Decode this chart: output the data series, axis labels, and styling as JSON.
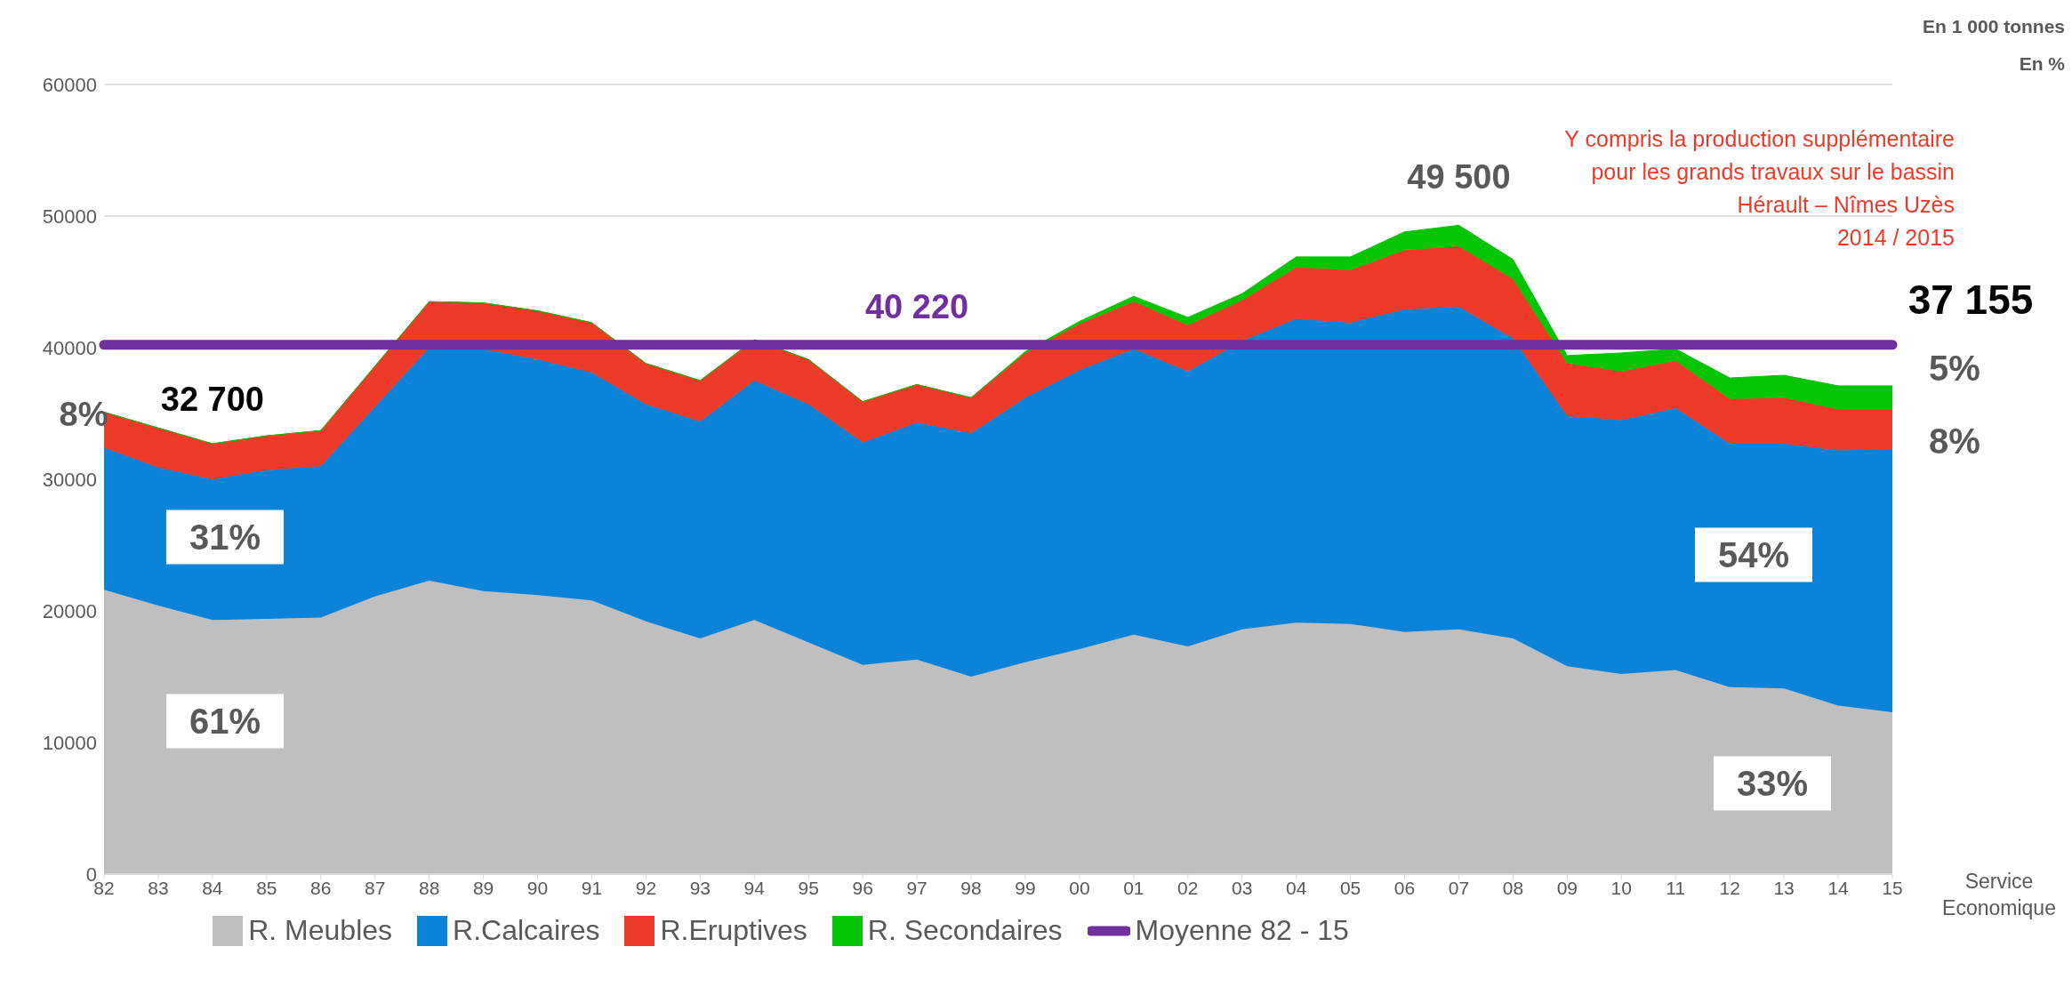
{
  "chart_data": {
    "type": "area",
    "stacked": true,
    "categories": [
      "82",
      "83",
      "84",
      "85",
      "86",
      "87",
      "88",
      "89",
      "90",
      "91",
      "92",
      "93",
      "94",
      "95",
      "96",
      "97",
      "98",
      "99",
      "00",
      "01",
      "02",
      "03",
      "04",
      "05",
      "06",
      "07",
      "08",
      "09",
      "10",
      "11",
      "12",
      "13",
      "14",
      "15"
    ],
    "series": [
      {
        "name": "R. Meubles",
        "color": "#bfbfbf",
        "values": [
          21600,
          20400,
          19300,
          19400,
          19500,
          21100,
          22300,
          21500,
          21200,
          20800,
          19200,
          17900,
          19300,
          17600,
          15900,
          16300,
          15000,
          16100,
          17100,
          18200,
          17300,
          18600,
          19100,
          19000,
          18400,
          18600,
          17900,
          15800,
          15200,
          15500,
          14200,
          14100,
          12800,
          12300
        ]
      },
      {
        "name": "R.Calcaires",
        "color": "#0a83d8",
        "values": [
          10800,
          10500,
          10700,
          11300,
          11500,
          14400,
          17700,
          18400,
          17900,
          17300,
          16500,
          16500,
          18200,
          18100,
          16900,
          18000,
          18500,
          20100,
          21200,
          21700,
          20900,
          21900,
          23100,
          22900,
          24500,
          24500,
          22800,
          19000,
          19300,
          19900,
          18500,
          18600,
          19400,
          20000
        ]
      },
      {
        "name": "R.Eruptives",
        "color": "#ee3a28",
        "values": [
          2700,
          3000,
          2700,
          2600,
          2700,
          3100,
          3500,
          3500,
          3700,
          3800,
          3100,
          3100,
          3100,
          3400,
          3100,
          2900,
          2700,
          3400,
          3500,
          3600,
          3500,
          3100,
          3900,
          4000,
          4500,
          4600,
          4500,
          4000,
          3700,
          3600,
          3400,
          3500,
          3100,
          3000
        ]
      },
      {
        "name": "R. Secondaires",
        "color": "#06c406",
        "values": [
          0,
          0,
          0,
          0,
          0,
          0,
          0,
          0,
          0,
          0,
          0,
          0,
          0,
          0,
          0,
          0,
          0,
          100,
          200,
          400,
          600,
          500,
          800,
          1000,
          1400,
          1600,
          1500,
          600,
          1400,
          900,
          1600,
          1700,
          1800,
          1800
        ]
      },
      {
        "name": "Moyenne 82 - 15",
        "type": "line",
        "color": "#7030a0",
        "values": [
          40220,
          40220,
          40220,
          40220,
          40220,
          40220,
          40220,
          40220,
          40220,
          40220,
          40220,
          40220,
          40220,
          40220,
          40220,
          40220,
          40220,
          40220,
          40220,
          40220,
          40220,
          40220,
          40220,
          40220,
          40220,
          40220,
          40220,
          40220,
          40220,
          40220,
          40220,
          40220,
          40220,
          40220
        ]
      }
    ],
    "ylim": [
      0,
      60000
    ],
    "yticks": [
      0,
      10000,
      20000,
      30000,
      40000,
      50000,
      60000
    ],
    "grid": "y",
    "legend": "bottom",
    "annotations": [
      "En 1 000 tonnes",
      "En %",
      "Y compris la production supplémentaire\npour les grands travaux sur le bassin\nHérault – Nîmes Uzès\n2014 / 2015",
      {
        "text": "32 700",
        "x": "84",
        "y": 32700
      },
      {
        "text": "40 220",
        "x": "97",
        "y": 40220
      },
      {
        "text": "49 500",
        "x": "07",
        "y": 49500
      },
      {
        "text": "37 155",
        "x": "15",
        "y": 37155
      },
      "8%",
      "31%",
      "61%",
      "54%",
      "33%",
      "5%",
      "8%",
      "Service Economique"
    ]
  }
}
